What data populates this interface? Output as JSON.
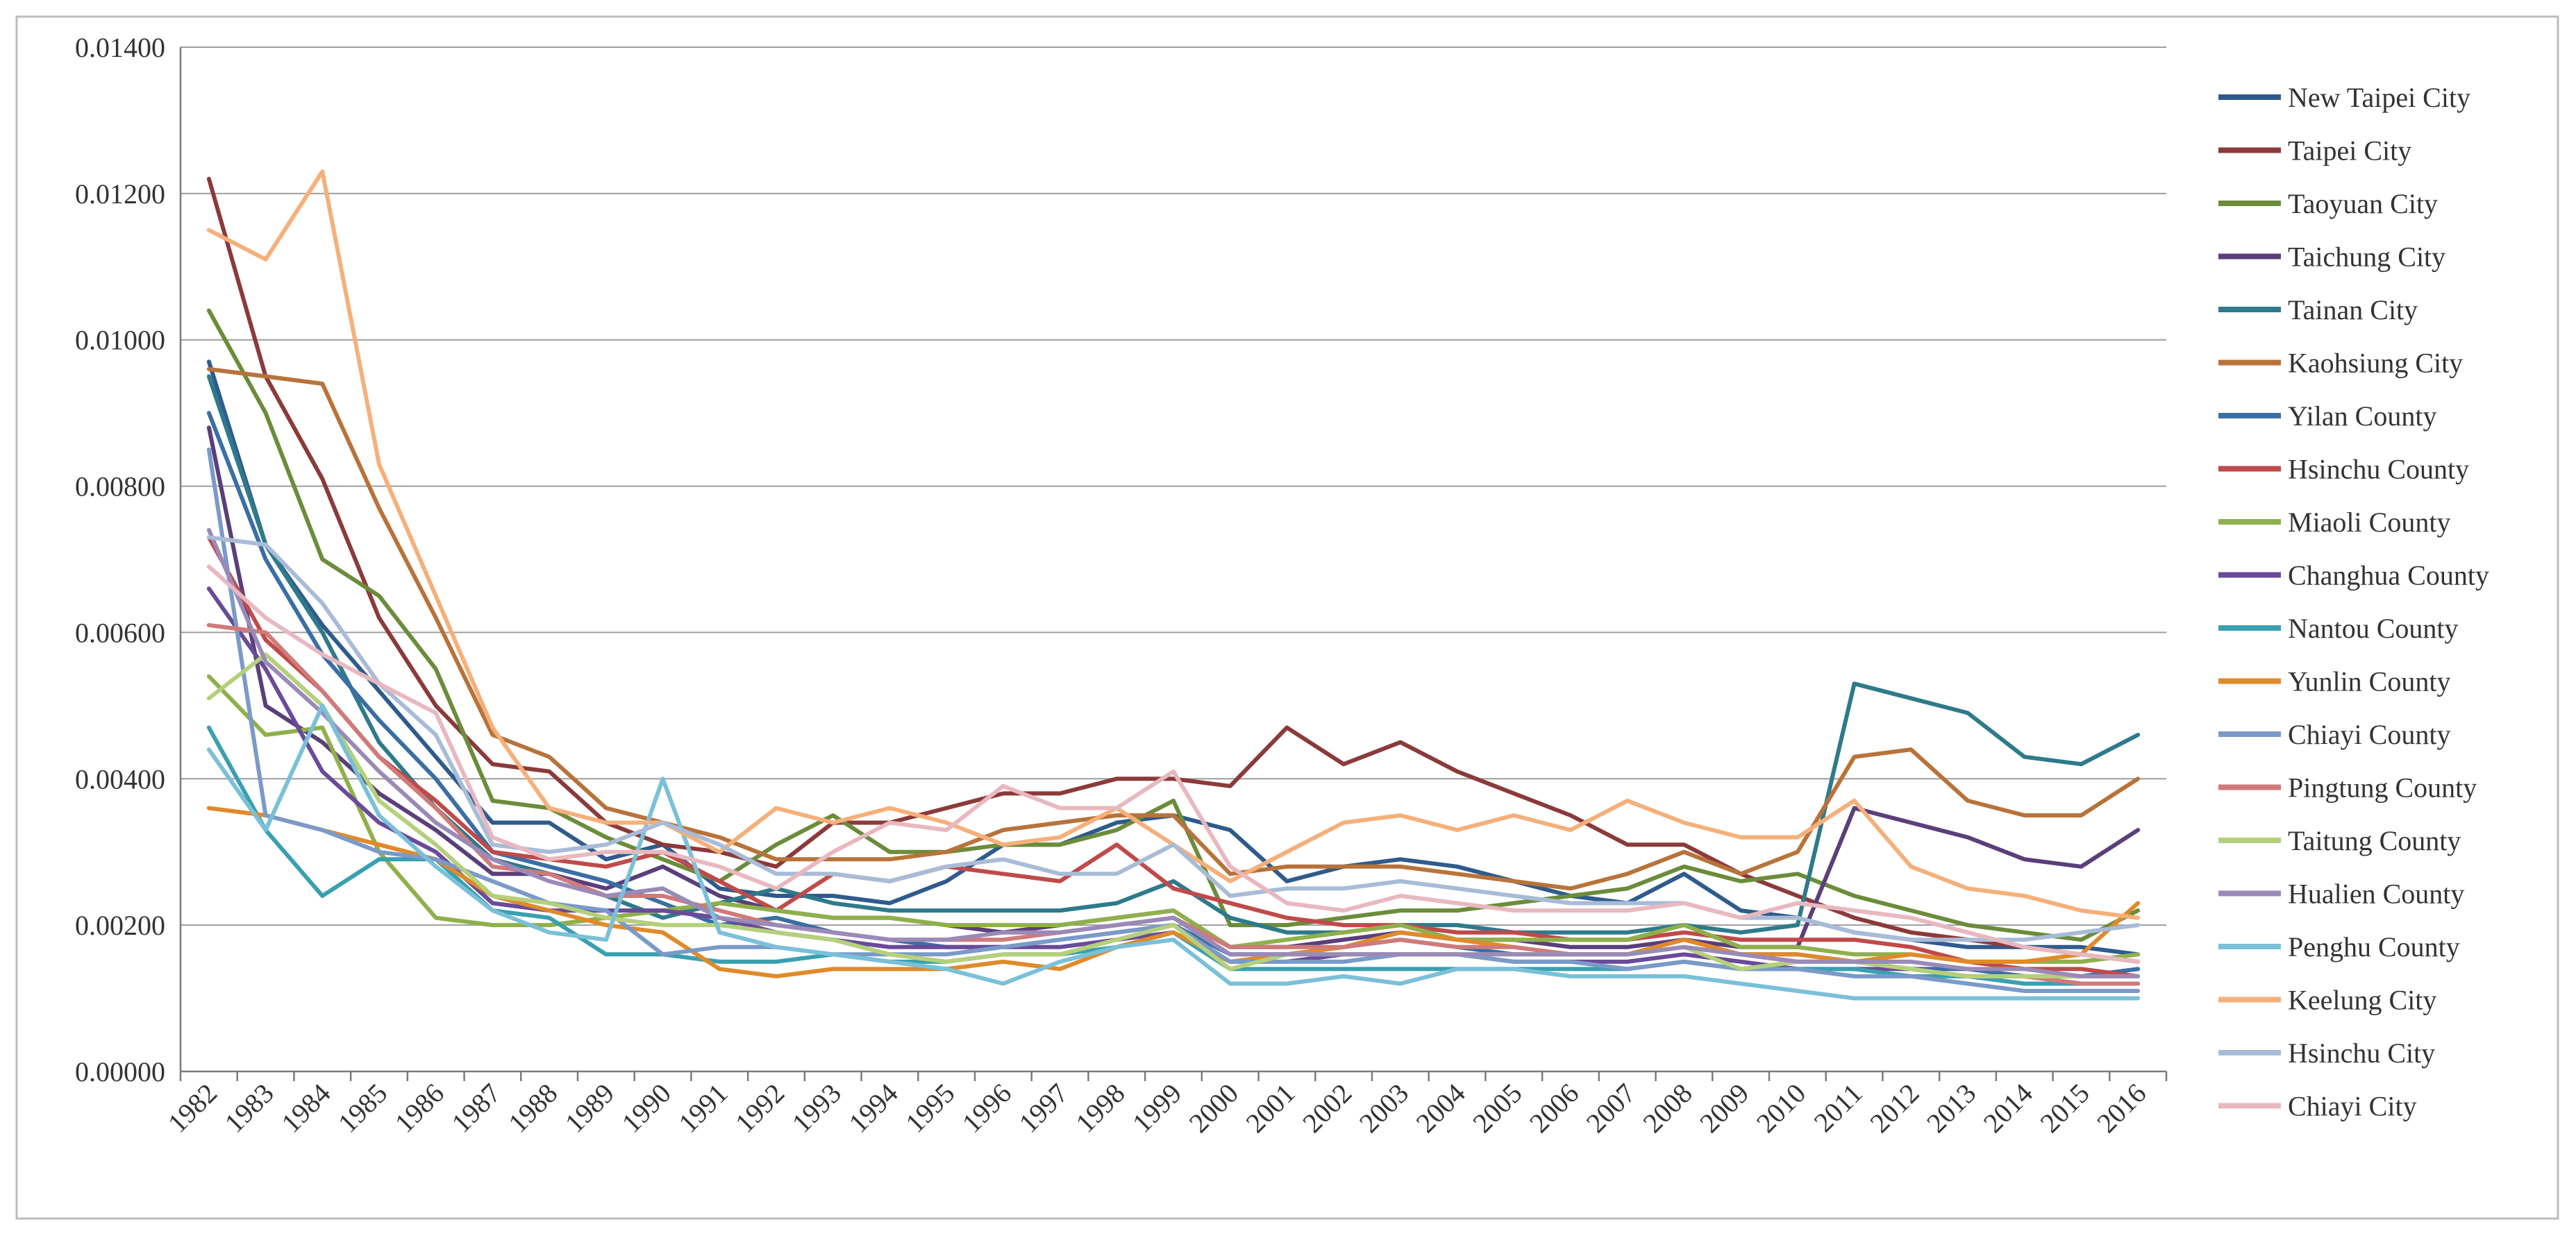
{
  "chart_data": {
    "type": "line",
    "title": "",
    "xlabel": "",
    "ylabel": "",
    "ylim": [
      0,
      0.014
    ],
    "yticks": [
      "0.00000",
      "0.00200",
      "0.00400",
      "0.00600",
      "0.00800",
      "0.01000",
      "0.01200",
      "0.01400"
    ],
    "grid": true,
    "legend_position": "right",
    "x": [
      "1982",
      "1983",
      "1984",
      "1985",
      "1986",
      "1987",
      "1988",
      "1989",
      "1990",
      "1991",
      "1992",
      "1993",
      "1994",
      "1995",
      "1996",
      "1997",
      "1998",
      "1999",
      "2000",
      "2001",
      "2002",
      "2003",
      "2004",
      "2005",
      "2006",
      "2007",
      "2008",
      "2009",
      "2010",
      "2011",
      "2012",
      "2013",
      "2014",
      "2015",
      "2016"
    ],
    "series": [
      {
        "name": "New Taipei City",
        "color": "#2f5b8c",
        "values": [
          0.0097,
          0.0072,
          0.0061,
          0.0052,
          0.0043,
          0.0034,
          0.0034,
          0.0029,
          0.0031,
          0.0025,
          0.0024,
          0.0024,
          0.0023,
          0.0026,
          0.0031,
          0.0031,
          0.0034,
          0.0035,
          0.0033,
          0.0026,
          0.0028,
          0.0029,
          0.0028,
          0.0026,
          0.0024,
          0.0023,
          0.0027,
          0.0022,
          0.0021,
          0.0019,
          0.0018,
          0.0017,
          0.0017,
          0.0017,
          0.0016
        ]
      },
      {
        "name": "Taipei City",
        "color": "#8b3a3a",
        "values": [
          0.0122,
          0.0095,
          0.0081,
          0.0062,
          0.005,
          0.0042,
          0.0041,
          0.0034,
          0.0031,
          0.003,
          0.0028,
          0.0034,
          0.0034,
          0.0036,
          0.0038,
          0.0038,
          0.004,
          0.004,
          0.0039,
          0.0047,
          0.0042,
          0.0045,
          0.0041,
          0.0038,
          0.0035,
          0.0031,
          0.0031,
          0.0027,
          0.0024,
          0.0021,
          0.0019,
          0.0018,
          0.0017,
          0.0016,
          0.0015
        ]
      },
      {
        "name": "Taoyuan City",
        "color": "#6b8c3a",
        "values": [
          0.0104,
          0.009,
          0.007,
          0.0065,
          0.0055,
          0.0037,
          0.0036,
          0.0032,
          0.0029,
          0.0026,
          0.0031,
          0.0035,
          0.003,
          0.003,
          0.0031,
          0.0031,
          0.0033,
          0.0037,
          0.002,
          0.002,
          0.0021,
          0.0022,
          0.0022,
          0.0023,
          0.0024,
          0.0025,
          0.0028,
          0.0026,
          0.0027,
          0.0024,
          0.0022,
          0.002,
          0.0019,
          0.0018,
          0.0022
        ]
      },
      {
        "name": "Taichung City",
        "color": "#5a3f7a",
        "values": [
          0.0088,
          0.005,
          0.0045,
          0.0038,
          0.0033,
          0.0027,
          0.0027,
          0.0025,
          0.0028,
          0.0024,
          0.0022,
          0.0021,
          0.0021,
          0.002,
          0.0019,
          0.002,
          0.0021,
          0.0022,
          0.0017,
          0.0017,
          0.0018,
          0.0019,
          0.0018,
          0.0018,
          0.0017,
          0.0017,
          0.0018,
          0.0017,
          0.0017,
          0.0036,
          0.0034,
          0.0032,
          0.0029,
          0.0028,
          0.0033
        ]
      },
      {
        "name": "Tainan City",
        "color": "#2e7a8a",
        "values": [
          0.0095,
          0.0072,
          0.006,
          0.0045,
          0.0036,
          0.0029,
          0.0027,
          0.0024,
          0.0021,
          0.0023,
          0.0025,
          0.0023,
          0.0022,
          0.0022,
          0.0022,
          0.0022,
          0.0023,
          0.0026,
          0.0021,
          0.0019,
          0.0019,
          0.002,
          0.002,
          0.0019,
          0.0019,
          0.0019,
          0.002,
          0.0019,
          0.002,
          0.0053,
          0.0051,
          0.0049,
          0.0043,
          0.0042,
          0.0046
        ]
      },
      {
        "name": "Kaohsiung City",
        "color": "#b8733a",
        "values": [
          0.0096,
          0.0095,
          0.0094,
          0.0077,
          0.0062,
          0.0046,
          0.0043,
          0.0036,
          0.0034,
          0.0032,
          0.0029,
          0.0029,
          0.0029,
          0.003,
          0.0033,
          0.0034,
          0.0035,
          0.0035,
          0.0027,
          0.0028,
          0.0028,
          0.0028,
          0.0027,
          0.0026,
          0.0025,
          0.0027,
          0.003,
          0.0027,
          0.003,
          0.0043,
          0.0044,
          0.0037,
          0.0035,
          0.0035,
          0.004
        ]
      },
      {
        "name": "Yilan County",
        "color": "#3a6ea5",
        "values": [
          0.009,
          0.007,
          0.0057,
          0.0048,
          0.004,
          0.003,
          0.0028,
          0.0026,
          0.0023,
          0.002,
          0.0021,
          0.0019,
          0.0018,
          0.0017,
          0.0017,
          0.0018,
          0.0019,
          0.002,
          0.0016,
          0.0016,
          0.0017,
          0.0018,
          0.0017,
          0.0016,
          0.0016,
          0.0016,
          0.0017,
          0.0016,
          0.0016,
          0.0015,
          0.0014,
          0.0014,
          0.0013,
          0.0013,
          0.0014
        ]
      },
      {
        "name": "Hsinchu County",
        "color": "#c04a4a",
        "values": [
          0.0073,
          0.0059,
          0.0052,
          0.0043,
          0.0037,
          0.003,
          0.0029,
          0.0028,
          0.003,
          0.0026,
          0.0022,
          0.0027,
          0.0026,
          0.0028,
          0.0027,
          0.0026,
          0.0031,
          0.0025,
          0.0023,
          0.0021,
          0.002,
          0.002,
          0.0019,
          0.0019,
          0.0018,
          0.0018,
          0.0019,
          0.0018,
          0.0018,
          0.0018,
          0.0017,
          0.0015,
          0.0014,
          0.0014,
          0.0013
        ]
      },
      {
        "name": "Miaoli County",
        "color": "#8fb04a",
        "values": [
          0.0054,
          0.0046,
          0.0047,
          0.003,
          0.0021,
          0.002,
          0.002,
          0.0021,
          0.0022,
          0.0023,
          0.0022,
          0.0021,
          0.0021,
          0.002,
          0.002,
          0.002,
          0.0021,
          0.0022,
          0.0017,
          0.0018,
          0.0019,
          0.002,
          0.0018,
          0.0018,
          0.0018,
          0.0018,
          0.002,
          0.0017,
          0.0017,
          0.0016,
          0.0016,
          0.0015,
          0.0015,
          0.0015,
          0.0016
        ]
      },
      {
        "name": "Changhua County",
        "color": "#6a4a9a",
        "values": [
          0.0066,
          0.0055,
          0.0041,
          0.0034,
          0.003,
          0.0023,
          0.0022,
          0.0022,
          0.0022,
          0.0021,
          0.0019,
          0.0018,
          0.0017,
          0.0017,
          0.0017,
          0.0017,
          0.0018,
          0.0019,
          0.0015,
          0.0015,
          0.0016,
          0.0016,
          0.0016,
          0.0015,
          0.0015,
          0.0015,
          0.0016,
          0.0015,
          0.0014,
          0.0014,
          0.0014,
          0.0013,
          0.0013,
          0.0012,
          0.0012
        ]
      },
      {
        "name": "Nantou County",
        "color": "#3aa0b0",
        "values": [
          0.0047,
          0.0033,
          0.0024,
          0.0029,
          0.0029,
          0.0022,
          0.0021,
          0.0016,
          0.0016,
          0.0015,
          0.0015,
          0.0016,
          0.0015,
          0.0015,
          0.0016,
          0.0016,
          0.0017,
          0.0019,
          0.0014,
          0.0014,
          0.0014,
          0.0014,
          0.0014,
          0.0014,
          0.0014,
          0.0014,
          0.0015,
          0.0014,
          0.0014,
          0.0014,
          0.0013,
          0.0013,
          0.0012,
          0.0012,
          0.0012
        ]
      },
      {
        "name": "Yunlin County",
        "color": "#e08a2a",
        "values": [
          0.0036,
          0.0035,
          0.0033,
          0.0031,
          0.0029,
          0.0024,
          0.0022,
          0.002,
          0.0019,
          0.0014,
          0.0013,
          0.0014,
          0.0014,
          0.0014,
          0.0015,
          0.0014,
          0.0017,
          0.0019,
          0.0015,
          0.0016,
          0.0017,
          0.0019,
          0.0018,
          0.0017,
          0.0016,
          0.0016,
          0.0018,
          0.0016,
          0.0016,
          0.0015,
          0.0016,
          0.0015,
          0.0015,
          0.0016,
          0.0023
        ]
      },
      {
        "name": "Chiayi County",
        "color": "#7a9ac8",
        "values": [
          0.0085,
          0.0035,
          0.0033,
          0.003,
          0.0029,
          0.0026,
          0.0023,
          0.0022,
          0.0016,
          0.0017,
          0.0017,
          0.0016,
          0.0016,
          0.0016,
          0.0017,
          0.0018,
          0.0019,
          0.002,
          0.0015,
          0.0015,
          0.0015,
          0.0016,
          0.0016,
          0.0015,
          0.0015,
          0.0014,
          0.0015,
          0.0014,
          0.0014,
          0.0013,
          0.0013,
          0.0012,
          0.0011,
          0.0011,
          0.0011
        ]
      },
      {
        "name": "Pingtung County",
        "color": "#d07a7a",
        "values": [
          0.0061,
          0.006,
          0.0052,
          0.0043,
          0.0036,
          0.0028,
          0.0027,
          0.0024,
          0.0024,
          0.0022,
          0.002,
          0.0019,
          0.0018,
          0.0018,
          0.0018,
          0.0019,
          0.002,
          0.0021,
          0.0017,
          0.0017,
          0.0017,
          0.0018,
          0.0017,
          0.0017,
          0.0016,
          0.0016,
          0.0017,
          0.0016,
          0.0015,
          0.0015,
          0.0014,
          0.0013,
          0.0013,
          0.0012,
          0.0012
        ]
      },
      {
        "name": "Taitung County",
        "color": "#b5d07a",
        "values": [
          0.0051,
          0.0057,
          0.005,
          0.0037,
          0.0031,
          0.0024,
          0.0023,
          0.0021,
          0.002,
          0.002,
          0.0019,
          0.0018,
          0.0016,
          0.0015,
          0.0016,
          0.0016,
          0.0018,
          0.002,
          0.0014,
          0.0016,
          0.0016,
          0.0016,
          0.0016,
          0.0016,
          0.0016,
          0.0016,
          0.0017,
          0.0014,
          0.0015,
          0.0015,
          0.0014,
          0.0013,
          0.0013,
          0.0013,
          0.0013
        ]
      },
      {
        "name": "Hualien County",
        "color": "#9a8ab8",
        "values": [
          0.0074,
          0.0056,
          0.0049,
          0.0041,
          0.0034,
          0.0029,
          0.0026,
          0.0024,
          0.0025,
          0.0021,
          0.002,
          0.0019,
          0.0018,
          0.0018,
          0.0019,
          0.0019,
          0.002,
          0.0021,
          0.0016,
          0.0016,
          0.0016,
          0.0016,
          0.0016,
          0.0016,
          0.0016,
          0.0016,
          0.0017,
          0.0016,
          0.0015,
          0.0015,
          0.0015,
          0.0014,
          0.0014,
          0.0013,
          0.0013
        ]
      },
      {
        "name": "Penghu County",
        "color": "#7ac0d8",
        "values": [
          0.0044,
          0.0033,
          0.005,
          0.0035,
          0.0028,
          0.0022,
          0.0019,
          0.0018,
          0.004,
          0.0019,
          0.0017,
          0.0016,
          0.0015,
          0.0014,
          0.0012,
          0.0015,
          0.0017,
          0.0018,
          0.0012,
          0.0012,
          0.0013,
          0.0012,
          0.0014,
          0.0014,
          0.0013,
          0.0013,
          0.0013,
          0.0012,
          0.0011,
          0.001,
          0.001,
          0.001,
          0.001,
          0.001,
          0.001
        ]
      },
      {
        "name": "Keelung City",
        "color": "#f5b07a",
        "values": [
          0.0115,
          0.0111,
          0.0123,
          0.0083,
          0.0065,
          0.0047,
          0.0036,
          0.0034,
          0.0034,
          0.003,
          0.0036,
          0.0034,
          0.0036,
          0.0034,
          0.0031,
          0.0032,
          0.0036,
          0.0031,
          0.0026,
          0.003,
          0.0034,
          0.0035,
          0.0033,
          0.0035,
          0.0033,
          0.0037,
          0.0034,
          0.0032,
          0.0032,
          0.0037,
          0.0028,
          0.0025,
          0.0024,
          0.0022,
          0.0021
        ]
      },
      {
        "name": "Hsinchu City",
        "color": "#a8bcd8",
        "values": [
          0.0073,
          0.0072,
          0.0064,
          0.0053,
          0.0046,
          0.0031,
          0.003,
          0.0031,
          0.0034,
          0.0031,
          0.0027,
          0.0027,
          0.0026,
          0.0028,
          0.0029,
          0.0027,
          0.0027,
          0.0031,
          0.0024,
          0.0025,
          0.0025,
          0.0026,
          0.0025,
          0.0024,
          0.0023,
          0.0023,
          0.0023,
          0.0021,
          0.0021,
          0.0019,
          0.0018,
          0.0018,
          0.0018,
          0.0019,
          0.002
        ]
      },
      {
        "name": "Chiayi City",
        "color": "#e8b8c0",
        "values": [
          0.0069,
          0.0062,
          0.0057,
          0.0053,
          0.0049,
          0.0032,
          0.0029,
          0.003,
          0.003,
          0.0028,
          0.0025,
          0.003,
          0.0034,
          0.0033,
          0.0039,
          0.0036,
          0.0036,
          0.0041,
          0.0028,
          0.0023,
          0.0022,
          0.0024,
          0.0023,
          0.0022,
          0.0022,
          0.0022,
          0.0023,
          0.0021,
          0.0023,
          0.0022,
          0.0021,
          0.0019,
          0.0017,
          0.0016,
          0.0015
        ]
      }
    ]
  }
}
